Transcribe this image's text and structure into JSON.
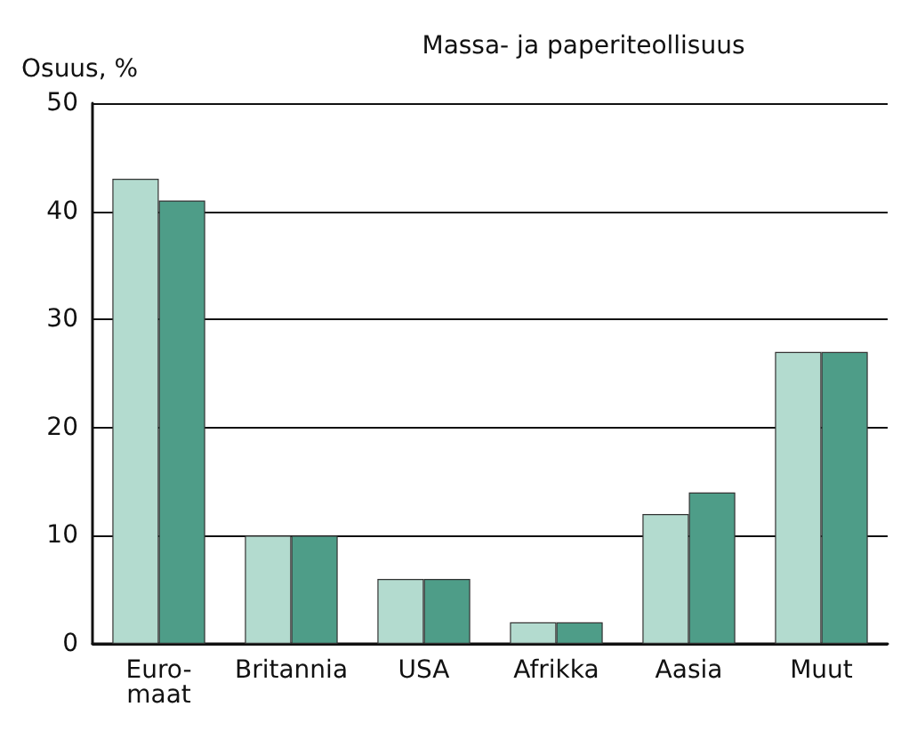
{
  "chart_data": {
    "type": "bar",
    "title": "Massa- ja paperiteollisuus",
    "ylabel": "Osuus, %",
    "categories": [
      "Euro-\nmaat",
      "Britannia",
      "USA",
      "Afrikka",
      "Aasia",
      "Muut"
    ],
    "series": [
      {
        "color": "#b3dbcf",
        "values": [
          43,
          10,
          6,
          2,
          12,
          27
        ]
      },
      {
        "color": "#4e9d88",
        "values": [
          41,
          10,
          6,
          2,
          14,
          27
        ]
      }
    ],
    "ylim": [
      0,
      50
    ],
    "yticks": [
      0,
      10,
      20,
      30,
      40,
      50
    ],
    "grid": "y"
  }
}
